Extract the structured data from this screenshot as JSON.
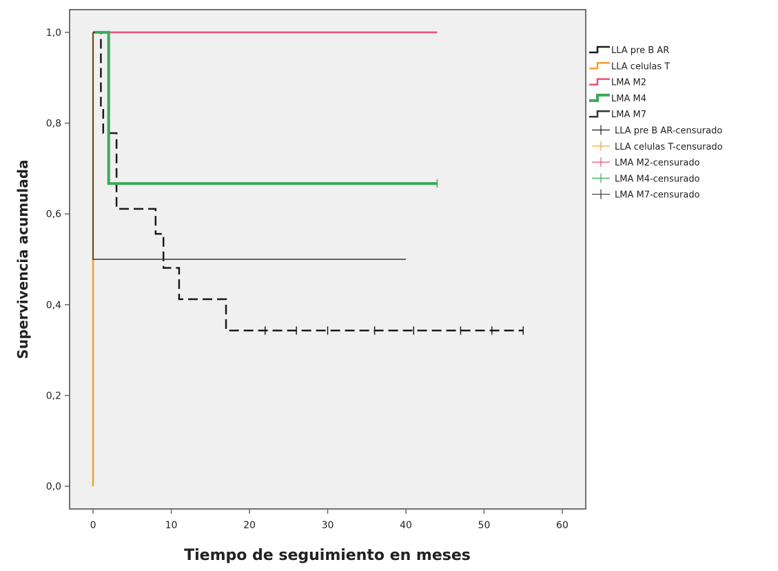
{
  "chart_data": {
    "type": "line",
    "step": true,
    "title": "",
    "xlabel": "Tiempo de seguimiento en meses",
    "ylabel": "Supervivencia acumulada",
    "xlim": [
      -3,
      63
    ],
    "ylim": [
      -0.05,
      1.05
    ],
    "xticks": [
      0,
      10,
      20,
      30,
      40,
      50,
      60
    ],
    "xtick_labels": [
      "0",
      "10",
      "20",
      "30",
      "40",
      "50",
      "60"
    ],
    "yticks": [
      0,
      0.2,
      0.4,
      0.6,
      0.8,
      1.0
    ],
    "ytick_labels": [
      "0,0",
      "0,2",
      "0,4",
      "0,6",
      "0,8",
      "1,0"
    ],
    "grid": false,
    "legend_position": "right",
    "series": [
      {
        "name": "LLA pre B AR",
        "color": "#1a1a1a",
        "dash": "dashed",
        "points": [
          [
            0,
            1.0
          ],
          [
            1,
            1.0
          ],
          [
            1,
            0.833
          ],
          [
            1.3,
            0.833
          ],
          [
            1.3,
            0.778
          ],
          [
            3,
            0.778
          ],
          [
            3,
            0.611
          ],
          [
            8,
            0.611
          ],
          [
            8,
            0.556
          ],
          [
            9,
            0.556
          ],
          [
            9,
            0.481
          ],
          [
            11,
            0.481
          ],
          [
            11,
            0.412
          ],
          [
            17,
            0.412
          ],
          [
            17,
            0.343
          ],
          [
            55,
            0.343
          ]
        ],
        "censored": [
          [
            22,
            0.343
          ],
          [
            26,
            0.343
          ],
          [
            30,
            0.343
          ],
          [
            36,
            0.343
          ],
          [
            41,
            0.343
          ],
          [
            47,
            0.343
          ],
          [
            51,
            0.343
          ],
          [
            55,
            0.343
          ]
        ]
      },
      {
        "name": "LLA celulas T",
        "color": "#f0a030",
        "dash": "solid",
        "points": [
          [
            0,
            1.0
          ],
          [
            0,
            0.0
          ]
        ],
        "censored": []
      },
      {
        "name": "LMA M2",
        "color": "#e8507a",
        "dash": "solid",
        "points": [
          [
            0.3,
            1.0
          ],
          [
            44,
            1.0
          ]
        ],
        "censored": []
      },
      {
        "name": "LMA M4",
        "color": "#3aaa5a",
        "dash": "solid",
        "points": [
          [
            0.2,
            1.0
          ],
          [
            2,
            1.0
          ],
          [
            2,
            0.667
          ],
          [
            44,
            0.667
          ]
        ],
        "censored": [
          [
            44,
            0.667
          ]
        ]
      },
      {
        "name": "LMA M7",
        "color": "#333333",
        "dash": "solid",
        "points": [
          [
            0,
            1.0
          ],
          [
            0,
            0.5
          ],
          [
            40,
            0.5
          ]
        ],
        "censored": []
      }
    ],
    "legend": [
      {
        "label": "LLA pre B AR",
        "type": "line",
        "color": "#1a1a1a",
        "dash": "dashed"
      },
      {
        "label": "LLA celulas T",
        "type": "line",
        "color": "#f0a030",
        "dash": "solid"
      },
      {
        "label": "LMA M2",
        "type": "line",
        "color": "#e8507a",
        "dash": "solid"
      },
      {
        "label": "LMA M4",
        "type": "line",
        "color": "#3aaa5a",
        "dash": "solid"
      },
      {
        "label": "LMA M7",
        "type": "line",
        "color": "#333333",
        "dash": "solid"
      },
      {
        "label": "LLA pre B AR-censurado",
        "type": "censor",
        "color": "#1a1a1a"
      },
      {
        "label": "LLA celulas T-censurado",
        "type": "censor",
        "color": "#f0a030"
      },
      {
        "label": "LMA M2-censurado",
        "type": "censor",
        "color": "#e8507a"
      },
      {
        "label": "LMA M4-censurado",
        "type": "censor",
        "color": "#3aaa5a"
      },
      {
        "label": "LMA M7-censurado",
        "type": "censor",
        "color": "#333333"
      }
    ],
    "colors": {
      "plot_background": "#f0f0f0",
      "axis": "#666666",
      "text": "#222222"
    }
  }
}
